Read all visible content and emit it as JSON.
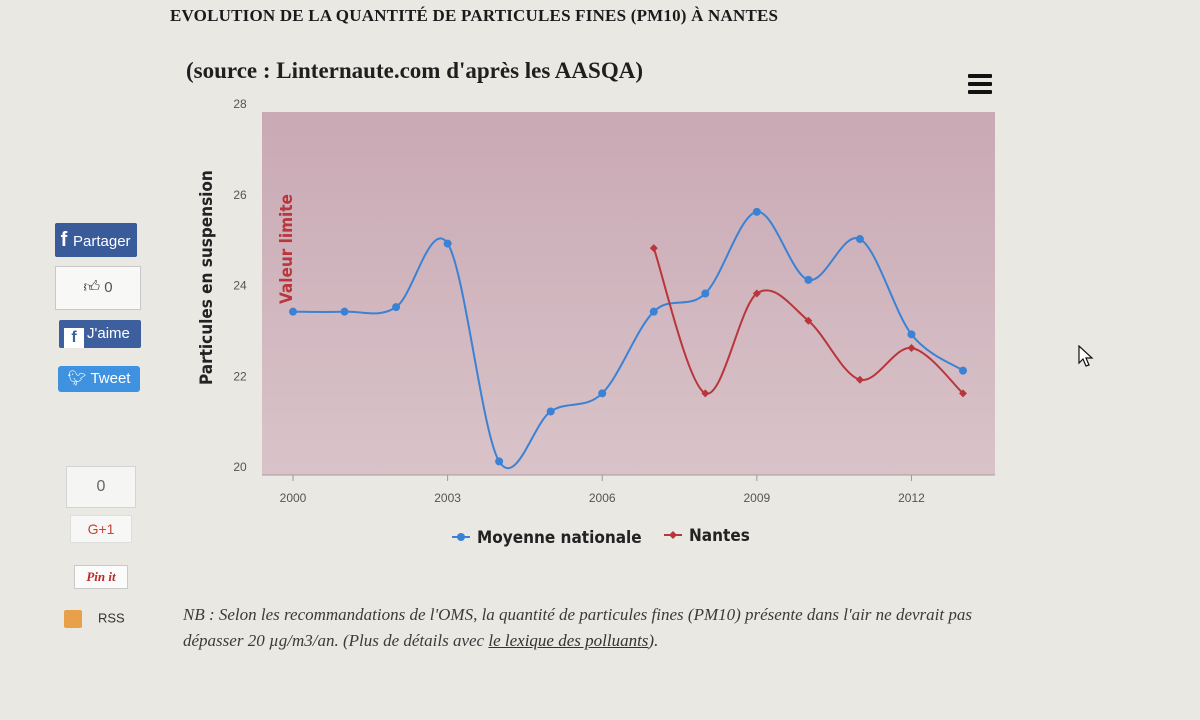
{
  "page": {
    "title": "EVOLUTION DE LA QUANTITÉ DE PARTICULES FINES (PM10) À NANTES",
    "subtitle": "(source : Linternaute.com d'après les AASQA)"
  },
  "share": {
    "facebook_share": "Partager",
    "like_count": "0",
    "facebook_like": "J'aime",
    "tweet": "Tweet",
    "gplus_count": "0",
    "gplus": "G+1",
    "pinit": "Pin it",
    "rss": "RSS"
  },
  "note": {
    "text_before": "NB : Selon les recommandations de l'OMS, la quantité de particules fines (PM10) présente dans l'air ne devrait pas dépasser 20 µg/m3/an. (Plus de détails avec ",
    "link": "le lexique des polluants",
    "text_after": ")."
  },
  "colors": {
    "plot_band": "#d9c3c9",
    "moyenne": "#3b82d4",
    "nantes": "#b8363c",
    "limit_label": "#b8363c"
  },
  "chart_data": {
    "type": "line",
    "title": "",
    "ylabel": "Particules en suspension",
    "limit_label": "Valeur limite",
    "ylim": [
      20,
      28
    ],
    "xlim": [
      2000,
      2013
    ],
    "y_ticks": [
      20,
      22,
      24,
      26,
      28
    ],
    "x_ticks": [
      2000,
      2003,
      2006,
      2009,
      2012
    ],
    "legend_position": "bottom",
    "series": [
      {
        "name": "Moyenne nationale",
        "color": "#3b82d4",
        "marker": "circle",
        "x": [
          2000,
          2001,
          2002,
          2003,
          2004,
          2005,
          2006,
          2007,
          2008,
          2009,
          2010,
          2011,
          2012,
          2013
        ],
        "values": [
          23.6,
          23.6,
          23.7,
          25.1,
          20.3,
          21.4,
          21.8,
          23.6,
          24.0,
          25.8,
          24.3,
          25.2,
          23.1,
          22.3
        ]
      },
      {
        "name": "Nantes",
        "color": "#b8363c",
        "marker": "diamond",
        "x": [
          2007,
          2008,
          2009,
          2010,
          2011,
          2012,
          2013
        ],
        "values": [
          25.0,
          21.8,
          24.0,
          23.4,
          22.1,
          22.8,
          21.8
        ]
      }
    ]
  }
}
